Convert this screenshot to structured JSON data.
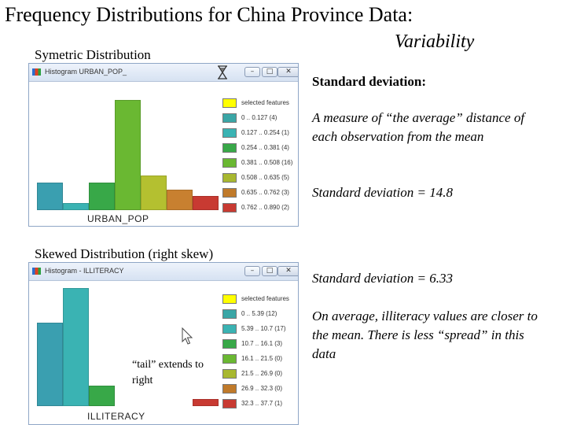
{
  "slide": {
    "title": "Frequency Distributions for China Province Data:",
    "subtitle": "Variability"
  },
  "symmetric": {
    "heading": "Symetric Distribution",
    "window_title": "Histogram  URBAN_POP_",
    "axis_label": "URBAN_POP",
    "legend_header": "selected features",
    "legend": [
      {
        "label": "0 .. 0.127 (4)",
        "color": "#3aa6a6"
      },
      {
        "label": "0.127 .. 0.254 (1)",
        "color": "#3ab3b3"
      },
      {
        "label": "0.254 .. 0.381 (4)",
        "color": "#38a848"
      },
      {
        "label": "0.381 .. 0.508 (16)",
        "color": "#6ab832"
      },
      {
        "label": "0.508 .. 0.635 (5)",
        "color": "#a8b830"
      },
      {
        "label": "0.635 .. 0.762 (3)",
        "color": "#c07a2a"
      },
      {
        "label": "0.762 .. 0.890 (2)",
        "color": "#c83a32"
      }
    ],
    "bars": [
      {
        "count": 4,
        "color": "#3a9fb0"
      },
      {
        "count": 1,
        "color": "#3ab3b3"
      },
      {
        "count": 4,
        "color": "#38a848"
      },
      {
        "count": 16,
        "color": "#6ab832"
      },
      {
        "count": 5,
        "color": "#b4c030"
      },
      {
        "count": 3,
        "color": "#c88030"
      },
      {
        "count": 2,
        "color": "#c83a32"
      }
    ]
  },
  "skewed": {
    "heading": "Skewed Distribution (right skew)",
    "window_title": "Histogram - ILLITERACY",
    "axis_label": "ILLITERACY",
    "legend_header": "selected features",
    "legend": [
      {
        "label": "0 .. 5.39 (12)",
        "color": "#3aa6a6"
      },
      {
        "label": "5.39 .. 10.7 (17)",
        "color": "#3ab3b3"
      },
      {
        "label": "10.7 .. 16.1 (3)",
        "color": "#38a848"
      },
      {
        "label": "16.1 .. 21.5 (0)",
        "color": "#6ab832"
      },
      {
        "label": "21.5 .. 26.9 (0)",
        "color": "#a8b830"
      },
      {
        "label": "26.9 .. 32.3 (0)",
        "color": "#c07a2a"
      },
      {
        "label": "32.3 .. 37.7 (1)",
        "color": "#c83a32"
      }
    ],
    "bars": [
      {
        "count": 12,
        "color": "#3a9fb0"
      },
      {
        "count": 17,
        "color": "#3ab3b3"
      },
      {
        "count": 3,
        "color": "#38a848"
      },
      {
        "count": 0,
        "color": "#6ab832"
      },
      {
        "count": 0,
        "color": "#b4c030"
      },
      {
        "count": 0,
        "color": "#c88030"
      },
      {
        "count": 1,
        "color": "#c83a32"
      }
    ],
    "tail_note": "“tail” extends to right"
  },
  "explanation": {
    "std_heading": "Standard deviation:",
    "measure": "A measure of “the average” distance of each observation from the mean",
    "std_urban": "Standard deviation = 14.8",
    "std_illiteracy": "Standard deviation = 6.33",
    "average_note": "On average, illiteracy values are closer to the mean.  There is less “spread” in this data"
  },
  "window_buttons": {
    "minimize": "–",
    "maximize": "□",
    "close": "✕"
  },
  "legend_header_color": "#ffff00"
}
